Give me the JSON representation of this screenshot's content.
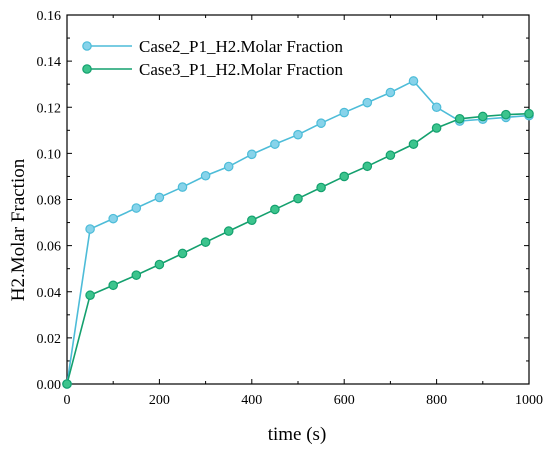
{
  "chart_data": {
    "type": "line",
    "title": "",
    "xlabel": "time (s)",
    "ylabel": "H2.Molar Fraction",
    "xlim": [
      0,
      1000
    ],
    "ylim": [
      0,
      0.16
    ],
    "x_ticks": [
      0,
      200,
      400,
      600,
      800,
      1000
    ],
    "y_ticks": [
      0.0,
      0.02,
      0.04,
      0.06,
      0.08,
      0.1,
      0.12,
      0.14,
      0.16
    ],
    "x_tick_labels": [
      "0",
      "200",
      "400",
      "600",
      "800",
      "1000"
    ],
    "y_tick_labels": [
      "0.00",
      "0.02",
      "0.04",
      "0.06",
      "0.08",
      "0.10",
      "0.12",
      "0.14",
      "0.16"
    ],
    "grid": false,
    "legend_position": "top-left",
    "x": [
      0,
      50,
      100,
      150,
      200,
      250,
      300,
      350,
      400,
      450,
      500,
      550,
      600,
      650,
      700,
      750,
      800,
      850,
      900,
      950,
      1000
    ],
    "series": [
      {
        "name": "Case2_P1_H2.Molar Fraction",
        "color": "#4dbcd8",
        "marker_fill": "#87d3ea",
        "values": [
          0.0,
          0.0672,
          0.0717,
          0.0763,
          0.0809,
          0.0854,
          0.0903,
          0.0943,
          0.0996,
          0.104,
          0.1081,
          0.1131,
          0.1177,
          0.122,
          0.1264,
          0.1314,
          0.12,
          0.114,
          0.1148,
          0.1156,
          0.1164
        ]
      },
      {
        "name": "Case3_P1_H2.Molar Fraction",
        "color": "#14a06e",
        "marker_fill": "#3cc48d",
        "values": [
          0.0,
          0.0385,
          0.0428,
          0.0472,
          0.0518,
          0.0566,
          0.0615,
          0.0663,
          0.071,
          0.0757,
          0.0804,
          0.0852,
          0.09,
          0.0944,
          0.0992,
          0.104,
          0.111,
          0.115,
          0.116,
          0.1168,
          0.1172
        ]
      }
    ]
  }
}
